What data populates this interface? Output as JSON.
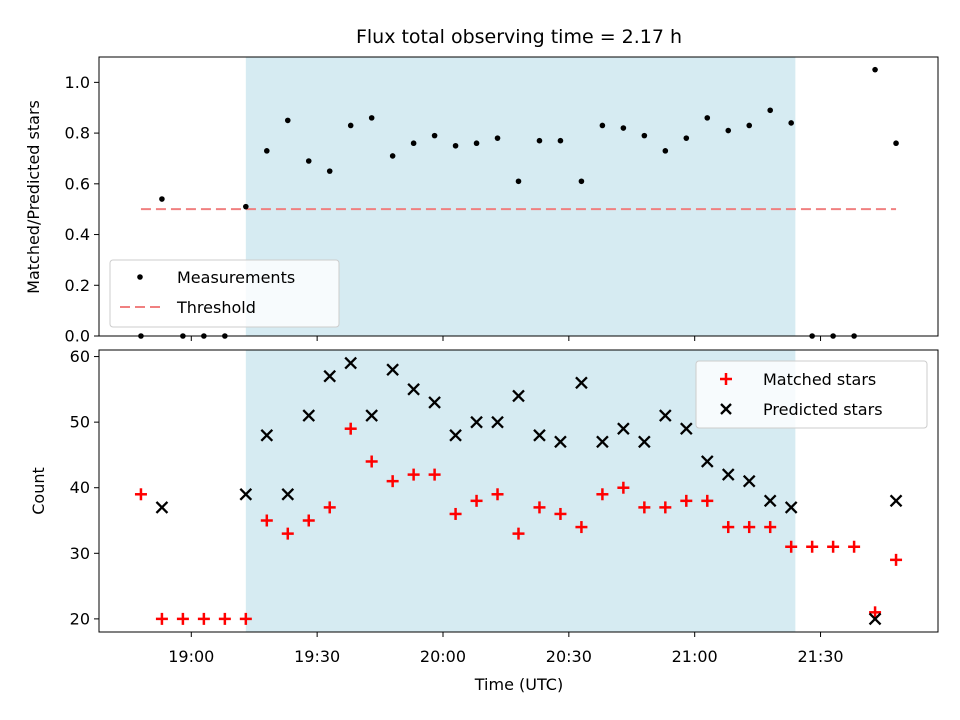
{
  "chart_data": [
    {
      "type": "scatter",
      "title": "Flux total observing time = 2.17 h",
      "ylabel": "Matched/Predicted stars",
      "xlabel": "",
      "ylim": [
        0,
        1.1
      ],
      "yticks": [
        "0.0",
        "0.2",
        "0.4",
        "0.6",
        "0.8",
        "1.0"
      ],
      "grid": false,
      "legend_position": "lower-left",
      "shaded_span": {
        "start": "19:13",
        "end": "21:24",
        "color": "#add8e6"
      },
      "series": [
        {
          "name": "Measurements",
          "marker": "dot",
          "color": "#000000",
          "x": [
            "18:48",
            "18:53",
            "18:58",
            "19:03",
            "19:08",
            "19:13",
            "19:18",
            "19:23",
            "19:28",
            "19:33",
            "19:38",
            "19:43",
            "19:48",
            "19:53",
            "19:58",
            "20:03",
            "20:08",
            "20:13",
            "20:18",
            "20:23",
            "20:28",
            "20:33",
            "20:38",
            "20:43",
            "20:48",
            "20:53",
            "20:58",
            "21:03",
            "21:08",
            "21:13",
            "21:18",
            "21:23",
            "21:28",
            "21:33",
            "21:38",
            "21:43",
            "21:48"
          ],
          "y": [
            0.0,
            0.54,
            0.0,
            0.0,
            0.0,
            0.51,
            0.73,
            0.85,
            0.69,
            0.65,
            0.83,
            0.86,
            0.71,
            0.76,
            0.79,
            0.75,
            0.76,
            0.78,
            0.61,
            0.77,
            0.77,
            0.61,
            0.83,
            0.82,
            0.79,
            0.73,
            0.78,
            0.86,
            0.81,
            0.83,
            0.89,
            0.84,
            0.0,
            0.0,
            0.0,
            1.05,
            0.76
          ]
        },
        {
          "name": "Threshold",
          "line": "dashed",
          "color": "#f08080",
          "x": [
            "18:48",
            "21:48"
          ],
          "y": [
            0.5,
            0.5
          ]
        }
      ]
    },
    {
      "type": "scatter",
      "title": "",
      "ylabel": "Count",
      "xlabel": "Time (UTC)",
      "ylim": [
        18,
        61
      ],
      "yticks": [
        "20",
        "30",
        "40",
        "50",
        "60"
      ],
      "xticks": [
        "19:00",
        "19:30",
        "20:00",
        "20:30",
        "21:00",
        "21:30"
      ],
      "grid": false,
      "legend_position": "upper-right",
      "shaded_span": {
        "start": "19:13",
        "end": "21:24",
        "color": "#add8e6"
      },
      "series": [
        {
          "name": "Matched stars",
          "marker": "plus",
          "color": "#ff0000",
          "x": [
            "18:48",
            "18:53",
            "18:58",
            "19:03",
            "19:08",
            "19:13",
            "19:18",
            "19:23",
            "19:28",
            "19:33",
            "19:38",
            "19:43",
            "19:48",
            "19:53",
            "19:58",
            "20:03",
            "20:08",
            "20:13",
            "20:18",
            "20:23",
            "20:28",
            "20:33",
            "20:38",
            "20:43",
            "20:48",
            "20:53",
            "20:58",
            "21:03",
            "21:08",
            "21:13",
            "21:18",
            "21:23",
            "21:28",
            "21:33",
            "21:38",
            "21:43",
            "21:48"
          ],
          "y": [
            39,
            20,
            20,
            20,
            20,
            20,
            35,
            33,
            35,
            37,
            49,
            44,
            41,
            42,
            42,
            36,
            38,
            39,
            33,
            37,
            36,
            34,
            39,
            40,
            37,
            37,
            38,
            38,
            34,
            34,
            34,
            31,
            31,
            31,
            31,
            21,
            29
          ]
        },
        {
          "name": "Predicted stars",
          "marker": "x",
          "color": "#000000",
          "x": [
            "18:53",
            "19:13",
            "19:18",
            "19:23",
            "19:28",
            "19:33",
            "19:38",
            "19:43",
            "19:48",
            "19:53",
            "19:58",
            "20:03",
            "20:08",
            "20:13",
            "20:18",
            "20:23",
            "20:28",
            "20:33",
            "20:38",
            "20:43",
            "20:48",
            "20:53",
            "20:58",
            "21:03",
            "21:08",
            "21:13",
            "21:18",
            "21:23",
            "21:43",
            "21:48"
          ],
          "y": [
            37,
            39,
            48,
            39,
            51,
            57,
            59,
            51,
            58,
            55,
            53,
            48,
            50,
            50,
            54,
            48,
            47,
            56,
            47,
            49,
            47,
            51,
            49,
            44,
            42,
            41,
            38,
            37,
            20,
            38
          ]
        }
      ]
    }
  ]
}
